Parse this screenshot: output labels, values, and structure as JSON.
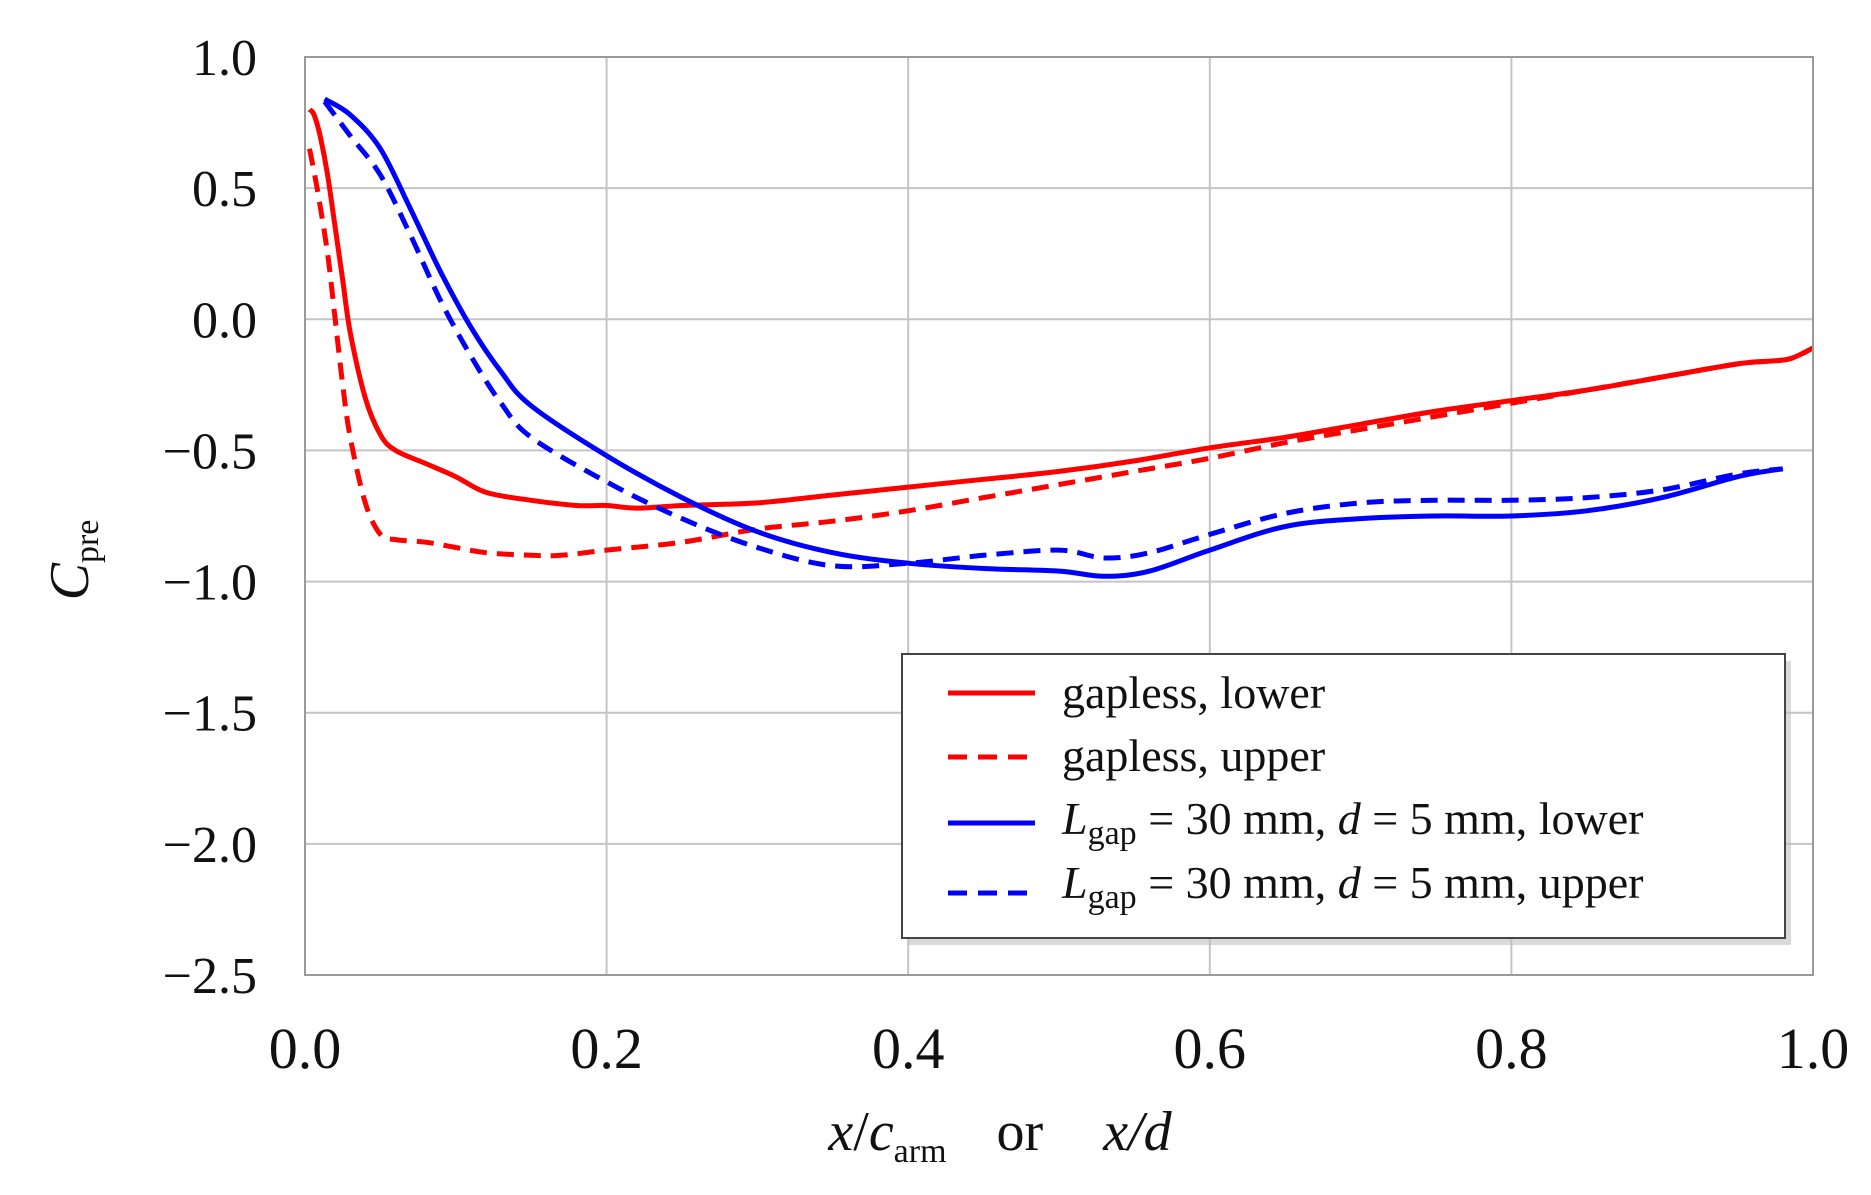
{
  "chart_data": {
    "type": "line",
    "title": "",
    "xlabel": {
      "x_part": "x",
      "slash": "/",
      "c_part": "c",
      "c_sub": "arm",
      "or_word": "or",
      "x2_part": "x",
      "d_part": "/d"
    },
    "ylabel": {
      "main": "C",
      "sub": "pre"
    },
    "xlim": [
      0.0,
      1.0
    ],
    "ylim": [
      -2.5,
      1.0
    ],
    "x_ticks": [
      0.0,
      0.2,
      0.4,
      0.6,
      0.8,
      1.0
    ],
    "x_tick_labels": [
      "0.0",
      "0.2",
      "0.4",
      "0.6",
      "0.8",
      "1.0"
    ],
    "y_ticks": [
      1.0,
      0.5,
      0.0,
      -0.5,
      -1.0,
      -1.5,
      -2.0,
      -2.5
    ],
    "y_tick_labels": [
      "1.0",
      "0.5",
      "0.0",
      "−0.5",
      "−1.0",
      "−1.5",
      "−2.0",
      "−2.5"
    ],
    "grid": true,
    "legend_position": "lower-right",
    "series": [
      {
        "name": "gapless, lower",
        "legend": {
          "prefix": "gapless, lower"
        },
        "color": "#ff0000",
        "style": "solid",
        "x": [
          0.003,
          0.006,
          0.01,
          0.015,
          0.02,
          0.025,
          0.03,
          0.04,
          0.05,
          0.06,
          0.08,
          0.1,
          0.12,
          0.15,
          0.18,
          0.2,
          0.22,
          0.25,
          0.3,
          0.35,
          0.4,
          0.45,
          0.5,
          0.55,
          0.6,
          0.65,
          0.7,
          0.75,
          0.8,
          0.85,
          0.9,
          0.95,
          0.97,
          0.985,
          1.0
        ],
        "y": [
          0.8,
          0.78,
          0.7,
          0.55,
          0.35,
          0.15,
          -0.05,
          -0.3,
          -0.44,
          -0.5,
          -0.55,
          -0.6,
          -0.66,
          -0.69,
          -0.71,
          -0.71,
          -0.72,
          -0.71,
          -0.7,
          -0.67,
          -0.64,
          -0.61,
          -0.58,
          -0.54,
          -0.49,
          -0.45,
          -0.4,
          -0.35,
          -0.31,
          -0.27,
          -0.22,
          -0.17,
          -0.16,
          -0.15,
          -0.11
        ]
      },
      {
        "name": "gapless, upper",
        "legend": {
          "prefix": "gapless, upper"
        },
        "color": "#ff0000",
        "style": "dashed",
        "x": [
          0.003,
          0.008,
          0.015,
          0.02,
          0.025,
          0.03,
          0.04,
          0.05,
          0.06,
          0.08,
          0.1,
          0.12,
          0.15,
          0.17,
          0.2,
          0.25,
          0.3,
          0.35,
          0.4,
          0.45,
          0.5,
          0.55,
          0.6,
          0.65,
          0.7,
          0.75,
          0.8,
          0.85,
          0.9,
          0.95,
          0.97,
          0.985,
          1.0
        ],
        "y": [
          0.65,
          0.5,
          0.25,
          0.0,
          -0.25,
          -0.45,
          -0.7,
          -0.82,
          -0.84,
          -0.85,
          -0.87,
          -0.89,
          -0.9,
          -0.9,
          -0.88,
          -0.85,
          -0.8,
          -0.77,
          -0.73,
          -0.68,
          -0.63,
          -0.58,
          -0.53,
          -0.47,
          -0.42,
          -0.37,
          -0.32,
          -0.27,
          -0.22,
          -0.17,
          -0.16,
          -0.15,
          -0.11
        ]
      },
      {
        "name": "Lgap = 30 mm, d = 5 mm, lower",
        "legend": {
          "prefix": "L",
          "sub": "gap",
          "mid": " = 30 mm, ",
          "italic": "d",
          "suffix": " = 5 mm, lower"
        },
        "color": "#0000ff",
        "style": "solid",
        "x": [
          0.013,
          0.03,
          0.05,
          0.07,
          0.09,
          0.11,
          0.13,
          0.15,
          0.2,
          0.25,
          0.3,
          0.35,
          0.4,
          0.45,
          0.5,
          0.53,
          0.56,
          0.6,
          0.65,
          0.7,
          0.75,
          0.8,
          0.85,
          0.9,
          0.95,
          0.98
        ],
        "y": [
          0.84,
          0.78,
          0.65,
          0.42,
          0.18,
          -0.03,
          -0.2,
          -0.33,
          -0.52,
          -0.68,
          -0.81,
          -0.89,
          -0.93,
          -0.95,
          -0.96,
          -0.98,
          -0.96,
          -0.88,
          -0.79,
          -0.76,
          -0.75,
          -0.75,
          -0.73,
          -0.68,
          -0.6,
          -0.57
        ]
      },
      {
        "name": "Lgap = 30 mm, d = 5 mm, upper",
        "legend": {
          "prefix": "L",
          "sub": "gap",
          "mid": " = 30 mm, ",
          "italic": "d",
          "suffix": " = 5 mm, upper"
        },
        "color": "#0000ff",
        "style": "dashed",
        "x": [
          0.013,
          0.03,
          0.05,
          0.07,
          0.09,
          0.11,
          0.13,
          0.15,
          0.2,
          0.25,
          0.3,
          0.35,
          0.4,
          0.45,
          0.5,
          0.53,
          0.56,
          0.6,
          0.65,
          0.7,
          0.75,
          0.8,
          0.85,
          0.9,
          0.95,
          0.98
        ],
        "y": [
          0.83,
          0.7,
          0.55,
          0.32,
          0.07,
          -0.14,
          -0.32,
          -0.45,
          -0.62,
          -0.76,
          -0.87,
          -0.94,
          -0.93,
          -0.9,
          -0.88,
          -0.91,
          -0.89,
          -0.82,
          -0.74,
          -0.7,
          -0.69,
          -0.69,
          -0.68,
          -0.65,
          -0.59,
          -0.57
        ]
      }
    ]
  }
}
